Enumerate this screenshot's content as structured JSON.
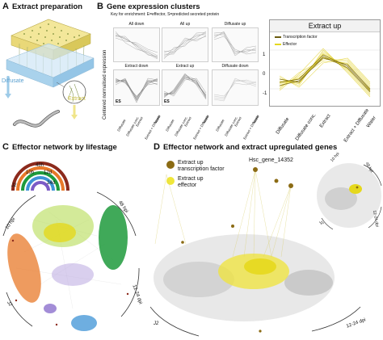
{
  "panels": {
    "A": {
      "letter": "A",
      "title": "Extract preparation",
      "labels": {
        "diffusate": "Diffusate",
        "extract": "Extract"
      }
    },
    "B": {
      "letter": "B",
      "title": "Gene expression clusters",
      "key": "Key for enrichment: E=effector, S=predicted secreted protein",
      "ylabel": "Centered normalised expression",
      "clusters": [
        {
          "title": "All down",
          "mark": ""
        },
        {
          "title": "All up",
          "mark": ""
        },
        {
          "title": "Diffusate up",
          "mark": ""
        },
        {
          "title": "Extract down",
          "mark": "ES"
        },
        {
          "title": "Extract up",
          "mark": "ES"
        },
        {
          "title": "Diffusate down",
          "mark": ""
        }
      ],
      "xticks": [
        "Diffusate",
        "Diffusate conc.",
        "Extract",
        "Extract + Diffusate",
        "Water"
      ],
      "large": {
        "title": "Extract up",
        "legend": [
          "Transcription factor",
          "Effector"
        ],
        "yticks": [
          "1",
          "0",
          "-1"
        ],
        "xticks": [
          "Diffusate",
          "Diffusate conc.",
          "Extract",
          "Extract + Diffusate",
          "Water"
        ]
      }
    },
    "C": {
      "letter": "C",
      "title": "Effector network by lifestage",
      "legend": [
        "48h",
        "10h",
        "12d",
        "24d",
        "J2"
      ],
      "arcs": [
        "10 hpi",
        "48 hpi",
        "12-24 dpi",
        "J2"
      ]
    },
    "D": {
      "letter": "D",
      "title": "Effector network and extract upregulated genes",
      "legend": [
        "Extract up transcription factor",
        "Extract up effector"
      ],
      "legend_lines": [
        [
          "Extract up",
          "transcription factor"
        ],
        [
          "Extract up",
          "effector"
        ]
      ],
      "gene_label": "Hsc_gene_14352",
      "arcs": [
        "10 hpi",
        "48 hpi",
        "12-24 dpi",
        "J2"
      ]
    }
  },
  "colors": {
    "yellow": "#e5d81d",
    "olive": "#8a7a12",
    "tf": "#8b6b14",
    "grey": "#bdbdbd",
    "orange": "#e8792a",
    "green": "#1e9a3c",
    "lightgreen": "#9bd14c",
    "blue": "#3e93d6",
    "purple": "#7c5cc6",
    "darkred": "#8c2a1c"
  }
}
